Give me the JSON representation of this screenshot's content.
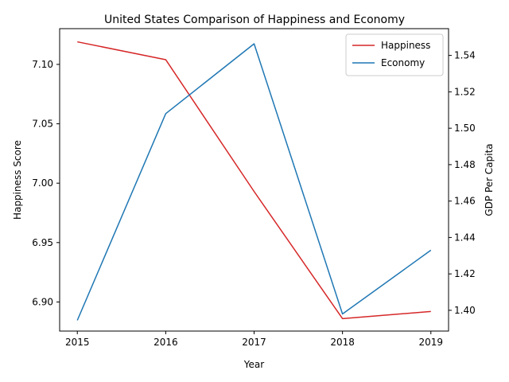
{
  "chart_data": {
    "type": "line",
    "title": "United States Comparison of Happiness and Economy",
    "xlabel": "Year",
    "ylabel_left": "Happiness Score",
    "ylabel_right": "GDP Per Capita",
    "x": [
      2015,
      2016,
      2017,
      2018,
      2019
    ],
    "x_tick_labels": [
      "2015",
      "2016",
      "2017",
      "2018",
      "2019"
    ],
    "xlim": [
      2014.8,
      2019.2
    ],
    "ylim_left": [
      6.8755,
      7.1301
    ],
    "ylim_right": [
      1.3886,
      1.5547
    ],
    "y_ticks_left": [
      "6.90",
      "6.95",
      "7.00",
      "7.05",
      "7.10"
    ],
    "y_tick_values_left": [
      6.9,
      6.95,
      7.0,
      7.05,
      7.1
    ],
    "y_ticks_right": [
      "1.40",
      "1.42",
      "1.44",
      "1.46",
      "1.48",
      "1.50",
      "1.52",
      "1.54"
    ],
    "y_tick_values_right": [
      1.4,
      1.42,
      1.44,
      1.46,
      1.48,
      1.5,
      1.52,
      1.54
    ],
    "series": [
      {
        "name": "Happiness",
        "axis": "left",
        "color": "#d62728",
        "values": [
          7.119,
          7.104,
          6.993,
          6.886,
          6.892
        ]
      },
      {
        "name": "Economy",
        "axis": "right",
        "color": "#1f77b4",
        "values": [
          1.3945,
          1.508,
          1.5464,
          1.398,
          1.433
        ]
      }
    ],
    "legend_position": "top-right",
    "grid": false
  }
}
